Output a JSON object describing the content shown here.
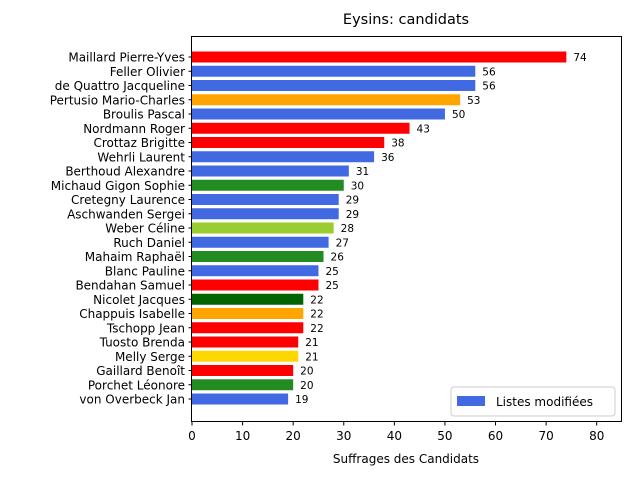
{
  "chart_data": {
    "type": "bar",
    "orientation": "horizontal",
    "title": "Eysins: candidats",
    "xlabel": "Suffrages des Candidats",
    "ylabel": "",
    "xlim": [
      0,
      85
    ],
    "xticks": [
      0,
      10,
      20,
      30,
      40,
      50,
      60,
      70,
      80
    ],
    "grid": false,
    "legend": {
      "position": "lower-right",
      "entries": [
        {
          "label": "Listes modifiées",
          "color": "#4169E1"
        }
      ]
    },
    "bars": [
      {
        "name": "Maillard Pierre-Yves",
        "value": 74,
        "color": "#FF0000"
      },
      {
        "name": "Feller Olivier",
        "value": 56,
        "color": "#4169E1"
      },
      {
        "name": "de Quattro Jacqueline",
        "value": 56,
        "color": "#4169E1"
      },
      {
        "name": "Pertusio Mario-Charles",
        "value": 53,
        "color": "#FFA500"
      },
      {
        "name": "Broulis Pascal",
        "value": 50,
        "color": "#4169E1"
      },
      {
        "name": "Nordmann Roger",
        "value": 43,
        "color": "#FF0000"
      },
      {
        "name": "Crottaz Brigitte",
        "value": 38,
        "color": "#FF0000"
      },
      {
        "name": "Wehrli Laurent",
        "value": 36,
        "color": "#4169E1"
      },
      {
        "name": "Berthoud Alexandre",
        "value": 31,
        "color": "#4169E1"
      },
      {
        "name": "Michaud Gigon Sophie",
        "value": 30,
        "color": "#228B22"
      },
      {
        "name": "Cretegny Laurence",
        "value": 29,
        "color": "#4169E1"
      },
      {
        "name": "Aschwanden Sergei",
        "value": 29,
        "color": "#4169E1"
      },
      {
        "name": "Weber Céline",
        "value": 28,
        "color": "#9ACD32"
      },
      {
        "name": "Ruch Daniel",
        "value": 27,
        "color": "#4169E1"
      },
      {
        "name": "Mahaim Raphaël",
        "value": 26,
        "color": "#228B22"
      },
      {
        "name": "Blanc Pauline",
        "value": 25,
        "color": "#4169E1"
      },
      {
        "name": "Bendahan Samuel",
        "value": 25,
        "color": "#FF0000"
      },
      {
        "name": "Nicolet Jacques",
        "value": 22,
        "color": "#006400"
      },
      {
        "name": "Chappuis Isabelle",
        "value": 22,
        "color": "#FFA500"
      },
      {
        "name": "Tschopp Jean",
        "value": 22,
        "color": "#FF0000"
      },
      {
        "name": "Tuosto Brenda",
        "value": 21,
        "color": "#FF0000"
      },
      {
        "name": "Melly Serge",
        "value": 21,
        "color": "#FFD700"
      },
      {
        "name": "Gaillard Benoît",
        "value": 20,
        "color": "#FF0000"
      },
      {
        "name": "Porchet Léonore",
        "value": 20,
        "color": "#228B22"
      },
      {
        "name": "von Overbeck Jan",
        "value": 19,
        "color": "#4169E1"
      }
    ]
  }
}
